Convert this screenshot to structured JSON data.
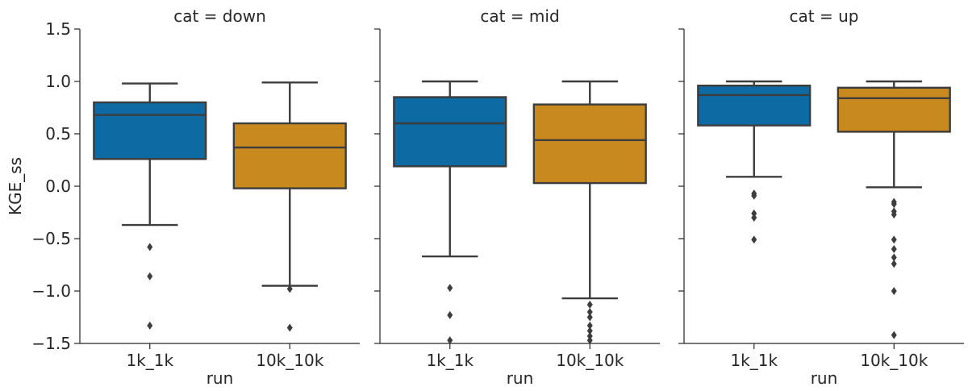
{
  "chart_data": {
    "type": "box",
    "ylabel": "KGE_ss",
    "xlabel": "run",
    "ylim": [
      -1.5,
      1.5
    ],
    "yticks": [
      -1.5,
      -1.0,
      -0.5,
      0.0,
      0.5,
      1.0,
      1.5
    ],
    "ytick_labels": [
      "−1.5",
      "−1.0",
      "−0.5",
      "0.0",
      "0.5",
      "1.0",
      "1.5"
    ],
    "categories": [
      "1k_1k",
      "10k_10k"
    ],
    "colors": {
      "1k_1k": "#0d6aa2",
      "10k_10k": "#c88a1e"
    },
    "panels": [
      {
        "title": "cat = down",
        "boxes": [
          {
            "category": "1k_1k",
            "whisker_low": -0.37,
            "q1": 0.26,
            "median": 0.68,
            "q3": 0.8,
            "whisker_high": 0.98,
            "outliers": [
              -0.58,
              -0.86,
              -1.33
            ]
          },
          {
            "category": "10k_10k",
            "whisker_low": -0.95,
            "q1": -0.02,
            "median": 0.37,
            "q3": 0.6,
            "whisker_high": 0.99,
            "outliers": [
              -0.98,
              -1.35
            ]
          }
        ]
      },
      {
        "title": "cat = mid",
        "boxes": [
          {
            "category": "1k_1k",
            "whisker_low": -0.67,
            "q1": 0.19,
            "median": 0.6,
            "q3": 0.85,
            "whisker_high": 1.0,
            "outliers": [
              -0.97,
              -1.23,
              -1.47
            ]
          },
          {
            "category": "10k_10k",
            "whisker_low": -1.07,
            "q1": 0.03,
            "median": 0.44,
            "q3": 0.78,
            "whisker_high": 1.0,
            "outliers": [
              -1.13,
              -1.2,
              -1.25,
              -1.33,
              -1.38,
              -1.43,
              -1.47
            ]
          }
        ]
      },
      {
        "title": "cat = up",
        "boxes": [
          {
            "category": "1k_1k",
            "whisker_low": 0.09,
            "q1": 0.58,
            "median": 0.87,
            "q3": 0.96,
            "whisker_high": 1.0,
            "outliers": [
              -0.07,
              -0.09,
              -0.26,
              -0.3,
              -0.51
            ]
          },
          {
            "category": "10k_10k",
            "whisker_low": -0.01,
            "q1": 0.52,
            "median": 0.84,
            "q3": 0.94,
            "whisker_high": 1.0,
            "outliers": [
              -0.15,
              -0.17,
              -0.24,
              -0.27,
              -0.51,
              -0.6,
              -0.68,
              -0.74,
              -1.0,
              -1.42
            ]
          }
        ]
      }
    ]
  }
}
